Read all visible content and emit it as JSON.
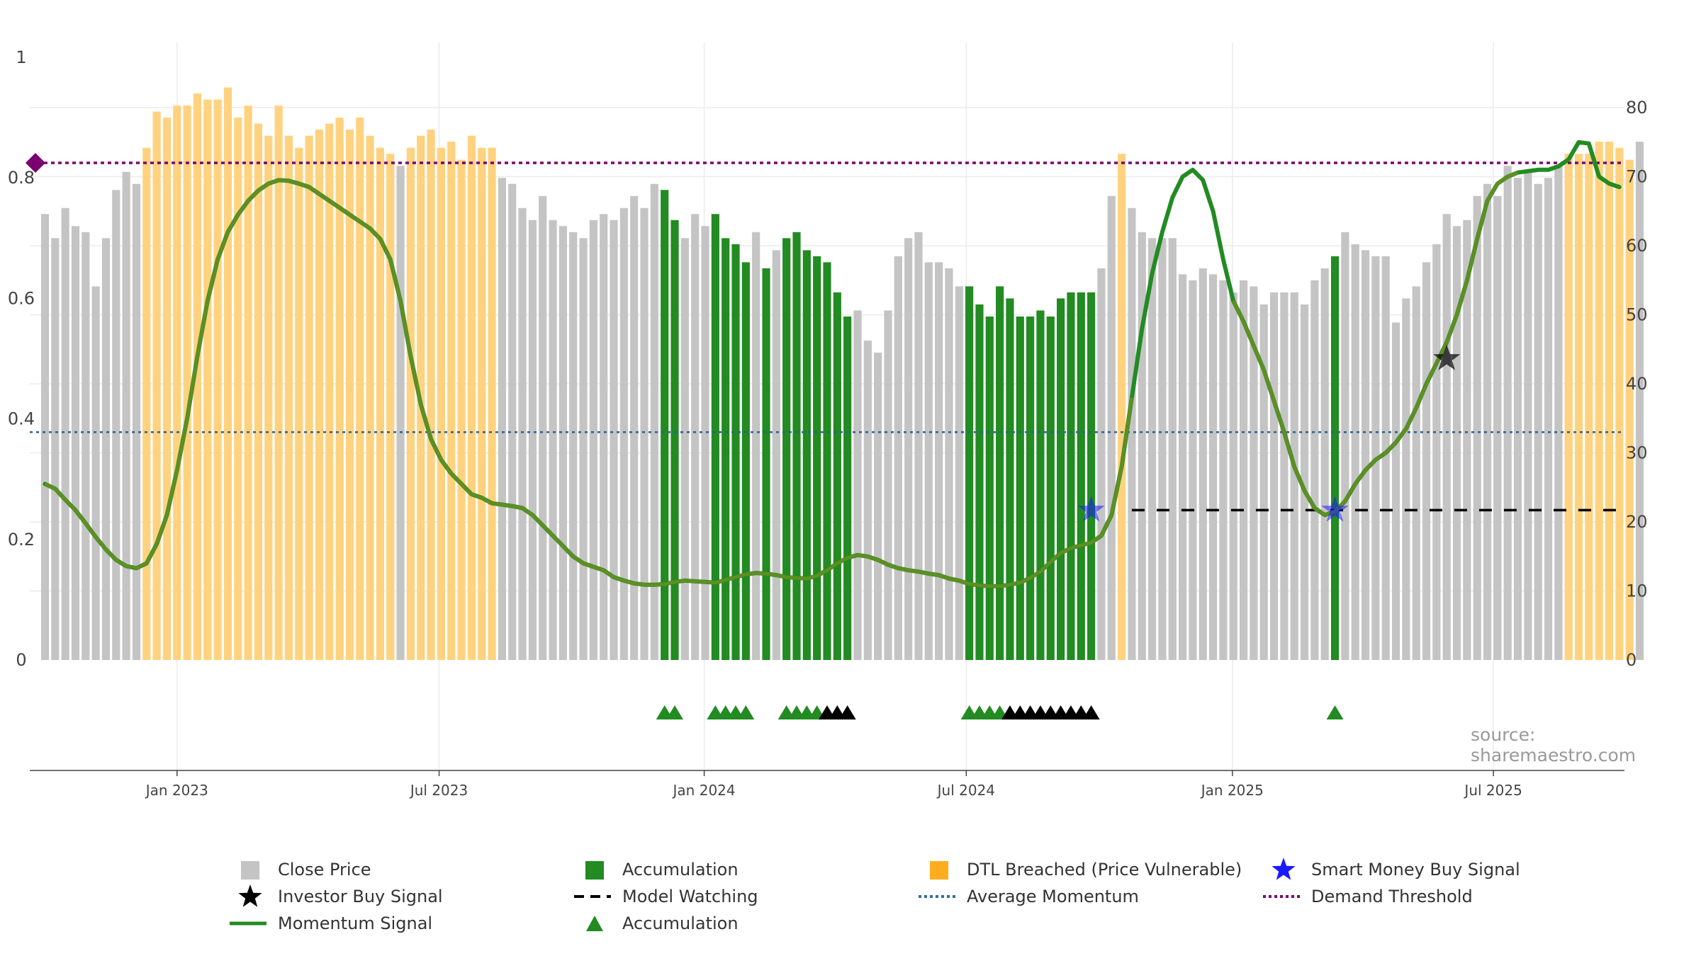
{
  "chart_data": {
    "type": "bar",
    "x_axis": {
      "ticks": [
        "Jan 2023",
        "Jul 2023",
        "Jan 2024",
        "Jul 2024",
        "Jan 2025",
        "Jul 2025"
      ],
      "tick_weeks": [
        13.0,
        38.8,
        64.9,
        90.7,
        116.9,
        142.6
      ],
      "range_weeks": [
        -1.5,
        155.5
      ]
    },
    "y_left": {
      "ticks": [
        "0",
        "0.2",
        "0.4",
        "0.6",
        "0.8",
        "1"
      ],
      "range": [
        0,
        1
      ]
    },
    "y_right": {
      "ticks": [
        "0",
        "10",
        "20",
        "30",
        "40",
        "50",
        "60",
        "70",
        "80"
      ],
      "range": [
        0,
        87.5
      ]
    },
    "grid": true,
    "legend_position": "bottom",
    "close_price": [
      0.74,
      0.7,
      0.75,
      0.72,
      0.71,
      0.62,
      0.7,
      0.78,
      0.81,
      0.79,
      0.85,
      0.91,
      0.9,
      0.92,
      0.92,
      0.94,
      0.93,
      0.93,
      0.95,
      0.9,
      0.92,
      0.89,
      0.87,
      0.92,
      0.87,
      0.85,
      0.87,
      0.88,
      0.89,
      0.9,
      0.88,
      0.9,
      0.87,
      0.85,
      0.84,
      0.82,
      0.85,
      0.87,
      0.88,
      0.85,
      0.86,
      0.83,
      0.87,
      0.85,
      0.85,
      0.8,
      0.79,
      0.75,
      0.73,
      0.77,
      0.73,
      0.72,
      0.71,
      0.7,
      0.73,
      0.74,
      0.73,
      0.75,
      0.77,
      0.75,
      0.79,
      0.78,
      0.73,
      0.7,
      0.74,
      0.72,
      0.74,
      0.7,
      0.69,
      0.66,
      0.71,
      0.65,
      0.68,
      0.7,
      0.71,
      0.68,
      0.67,
      0.66,
      0.61,
      0.57,
      0.58,
      0.53,
      0.51,
      0.58,
      0.67,
      0.7,
      0.71,
      0.66,
      0.66,
      0.65,
      0.62,
      0.62,
      0.59,
      0.57,
      0.62,
      0.6,
      0.57,
      0.57,
      0.58,
      0.57,
      0.6,
      0.61,
      0.61,
      0.61,
      0.65,
      0.77,
      0.84,
      0.75,
      0.71,
      0.7,
      0.7,
      0.7,
      0.64,
      0.63,
      0.65,
      0.64,
      0.63,
      0.61,
      0.63,
      0.62,
      0.59,
      0.61,
      0.61,
      0.61,
      0.59,
      0.63,
      0.65,
      0.67,
      0.71,
      0.69,
      0.68,
      0.67,
      0.67,
      0.56,
      0.6,
      0.62,
      0.66,
      0.69,
      0.74,
      0.72,
      0.73,
      0.77,
      0.79,
      0.77,
      0.82,
      0.8,
      0.81,
      0.79,
      0.8,
      0.82,
      0.84,
      0.84,
      0.84,
      0.86,
      0.86,
      0.85,
      0.83,
      0.86
    ],
    "accumulation_weeks": [
      61,
      62,
      66,
      67,
      68,
      69,
      71,
      73,
      74,
      75,
      76,
      77,
      78,
      79,
      91,
      92,
      93,
      94,
      95,
      96,
      97,
      98,
      99,
      100,
      101,
      102,
      103,
      127
    ],
    "dtl_breached_weeks": [
      10,
      11,
      12,
      13,
      14,
      15,
      16,
      17,
      18,
      19,
      20,
      21,
      22,
      23,
      24,
      25,
      26,
      27,
      28,
      29,
      30,
      31,
      32,
      33,
      34,
      36,
      37,
      38,
      39,
      40,
      41,
      42,
      43,
      44,
      106,
      150,
      151,
      152,
      153,
      154,
      155,
      156
    ],
    "momentum": [
      25.5,
      24.8,
      23.2,
      21.7,
      19.8,
      17.8,
      16.0,
      14.5,
      13.6,
      13.3,
      14.0,
      16.8,
      21.0,
      27.5,
      35.0,
      44.0,
      52.0,
      58.0,
      62.0,
      64.5,
      66.5,
      68.0,
      69.0,
      69.5,
      69.4,
      69.0,
      68.5,
      67.5,
      66.5,
      65.5,
      64.5,
      63.5,
      62.5,
      61.0,
      58.0,
      52.0,
      44.0,
      37.0,
      32.0,
      29.0,
      27.0,
      25.5,
      24.0,
      23.5,
      22.7,
      22.5,
      22.3,
      22.0,
      21.0,
      19.5,
      18.0,
      16.5,
      15.0,
      14.0,
      13.5,
      13.0,
      12.0,
      11.5,
      11.1,
      10.9,
      10.9,
      11.0,
      11.3,
      11.5,
      11.4,
      11.3,
      11.2,
      11.6,
      12.0,
      12.4,
      12.6,
      12.5,
      12.3,
      12.0,
      11.9,
      11.8,
      12.2,
      13.0,
      14.0,
      14.8,
      15.2,
      15.0,
      14.5,
      13.8,
      13.3,
      13.0,
      12.8,
      12.5,
      12.3,
      11.8,
      11.5,
      11.0,
      10.8,
      10.7,
      10.7,
      10.9,
      11.2,
      11.9,
      12.8,
      14.2,
      15.5,
      16.2,
      16.6,
      17.0,
      18.0,
      21.0,
      28.0,
      38.0,
      48.0,
      56.0,
      62.0,
      67.0,
      70.0,
      71.0,
      69.5,
      65.0,
      58.0,
      52.0,
      49.0,
      45.5,
      42.0,
      37.5,
      33.0,
      28.0,
      24.5,
      22.0,
      21.0,
      21.5,
      23.0,
      25.5,
      27.5,
      29.0,
      30.0,
      31.5,
      33.5,
      36.5,
      40.0,
      43.0,
      46.0,
      50.0,
      55.0,
      61.0,
      66.5,
      69.0,
      70.0,
      70.6,
      70.8,
      71.0,
      71.0,
      71.5,
      72.5,
      75.0,
      74.8,
      70.0,
      69.0,
      68.5
    ],
    "momentum_highlight_ranges": [
      [
        108,
        116
      ],
      [
        146,
        156
      ]
    ],
    "average_momentum": 33.0,
    "demand_threshold": 72.0,
    "model_watching": {
      "start_week": 107,
      "end_week": 155,
      "value": 21.7
    },
    "smart_money_buy_signal": [
      {
        "week": 103,
        "value": 21.7
      },
      {
        "week": 127,
        "value": 21.7
      }
    ],
    "investor_buy_signal": [
      {
        "week": 138,
        "y_left": 0.5
      }
    ],
    "accumulation_markers": {
      "green": [
        61,
        62,
        66,
        67,
        68,
        69,
        73,
        74,
        75,
        76,
        91,
        92,
        93,
        94,
        127
      ],
      "black": [
        77,
        78,
        79,
        95,
        96,
        97,
        98,
        99,
        100,
        101,
        102,
        103
      ]
    },
    "colors": {
      "close_price": "#c4c4c4",
      "accumulation": "#228b22",
      "dtl_breached": "#ffd27f",
      "momentum": "#228b22",
      "momentum_shade": "#6b8e23",
      "average_momentum": "#2f5f8f",
      "demand_threshold": "#7a0070",
      "model_watching": "#000000",
      "smart_money": "#1a1aff",
      "investor": "#000000"
    }
  },
  "source_label": "source: sharemaestro.com",
  "legend": [
    {
      "label": "Close Price",
      "icon": "gray-square-icon"
    },
    {
      "label": "Accumulation",
      "icon": "green-square-icon"
    },
    {
      "label": "DTL Breached (Price Vulnerable)",
      "icon": "orange-square-icon"
    },
    {
      "label": "Smart Money Buy Signal",
      "icon": "blue-star-icon"
    },
    {
      "label": "Investor Buy Signal",
      "icon": "black-star-icon"
    },
    {
      "label": "Model Watching",
      "icon": "black-dash-line-icon"
    },
    {
      "label": "Average Momentum",
      "icon": "blue-dotted-line-icon"
    },
    {
      "label": "Demand Threshold",
      "icon": "purple-dotted-line-icon"
    },
    {
      "label": "Momentum Signal",
      "icon": "green-line-icon"
    },
    {
      "label": "Accumulation",
      "icon": "green-triangle-icon"
    }
  ]
}
